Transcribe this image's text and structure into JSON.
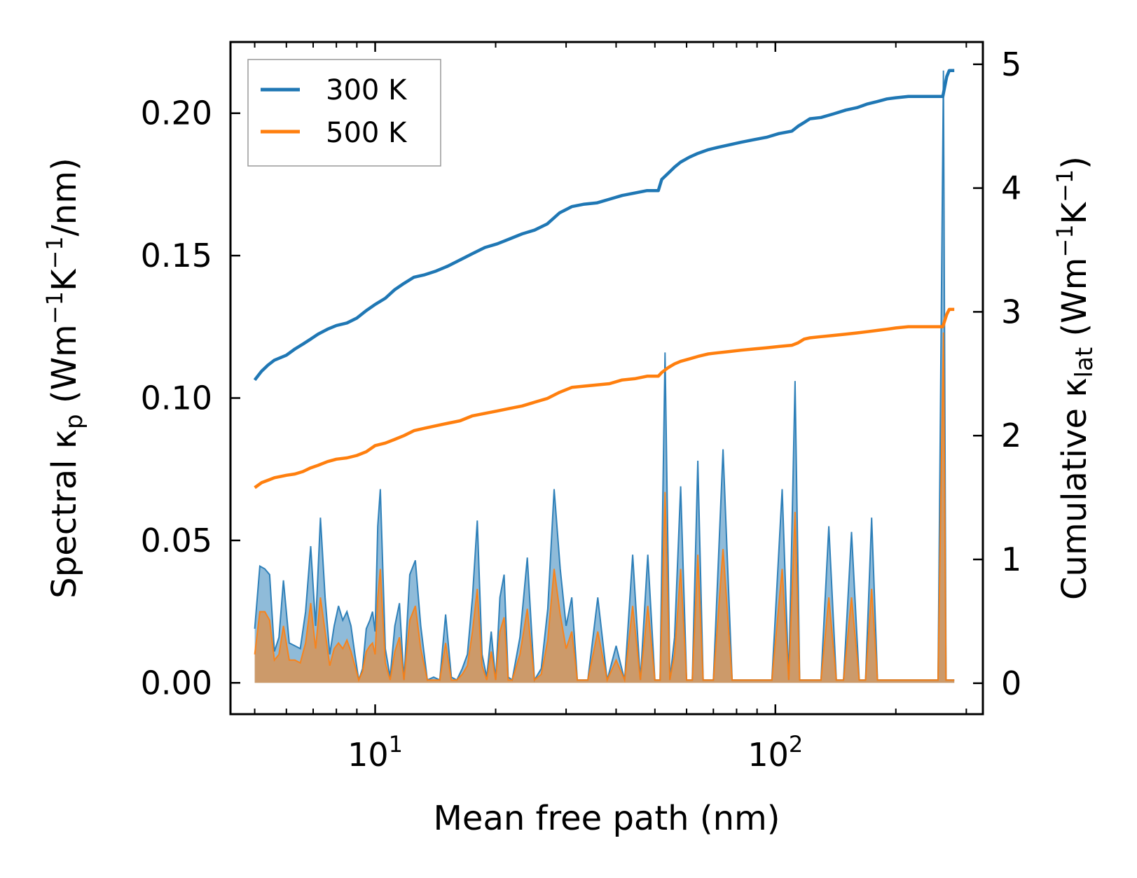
{
  "chart_data": {
    "type": "line",
    "x_scale": "log",
    "xlabel": "Mean free path (nm)",
    "ylabel_left": {
      "main": "Spectral κ",
      "sub": "p",
      "units_pre": " (Wm",
      "sup1": "−1",
      "mid": "K",
      "sup2": "−1",
      "units_post": "/nm)"
    },
    "ylabel_right": {
      "main": "Cumulative κ",
      "sub": "lat",
      "units_pre": " (Wm",
      "sup1": "−1",
      "mid": "K",
      "sup2": "−1",
      "units_post": ")"
    },
    "xlim": [
      4.35,
      330
    ],
    "ylim_left": [
      -0.011,
      0.225
    ],
    "ylim_right": [
      -0.25,
      5.18
    ],
    "x_major_ticks": [
      {
        "value": 10,
        "base": "10",
        "exp": "1"
      },
      {
        "value": 100,
        "base": "10",
        "exp": "2"
      }
    ],
    "x_minor_ticks": [
      5,
      6,
      7,
      8,
      9,
      20,
      30,
      40,
      50,
      60,
      70,
      80,
      90,
      200,
      300
    ],
    "y_left_ticks": [
      {
        "value": 0.0,
        "label": "0.00"
      },
      {
        "value": 0.05,
        "label": "0.05"
      },
      {
        "value": 0.1,
        "label": "0.10"
      },
      {
        "value": 0.15,
        "label": "0.15"
      },
      {
        "value": 0.2,
        "label": "0.20"
      }
    ],
    "y_right_ticks": [
      {
        "value": 0,
        "label": "0"
      },
      {
        "value": 1,
        "label": "1"
      },
      {
        "value": 2,
        "label": "2"
      },
      {
        "value": 3,
        "label": "3"
      },
      {
        "value": 4,
        "label": "4"
      },
      {
        "value": 5,
        "label": "5"
      }
    ],
    "legend": {
      "position": "top-left",
      "entries": [
        {
          "label": "300 K",
          "color": "#1f77b4"
        },
        {
          "label": "500 K",
          "color": "#ff7f0e"
        }
      ]
    },
    "series": [
      {
        "name": "300 K",
        "color": "#1f77b4",
        "cumulative": {
          "x": [
            5.0,
            5.2,
            5.4,
            5.6,
            5.8,
            6.0,
            6.3,
            6.6,
            6.9,
            7.2,
            7.6,
            8.0,
            8.5,
            9.0,
            9.5,
            10.0,
            10.6,
            11.2,
            11.8,
            12.5,
            13.3,
            14.2,
            15.2,
            16.3,
            17.5,
            18.8,
            20.2,
            21.7,
            23.3,
            25.0,
            26.9,
            28.9,
            31.0,
            33.3,
            35.8,
            38.5,
            41.4,
            44.5,
            47.8,
            51.0,
            52.0,
            54.0,
            56.0,
            58.0,
            61.0,
            64.0,
            68.0,
            72.0,
            77.0,
            82.0,
            88.0,
            95.0,
            102.0,
            110.0,
            114.0,
            118.0,
            122.0,
            130.0,
            140.0,
            150.0,
            160.0,
            170.0,
            180.0,
            190.0,
            200.0,
            215.0,
            230.0,
            250.0,
            262.0,
            268.0,
            272.0,
            280.0
          ],
          "y": [
            2.45,
            2.52,
            2.57,
            2.61,
            2.63,
            2.65,
            2.7,
            2.74,
            2.78,
            2.82,
            2.86,
            2.89,
            2.91,
            2.95,
            3.01,
            3.06,
            3.11,
            3.18,
            3.23,
            3.28,
            3.3,
            3.33,
            3.37,
            3.42,
            3.47,
            3.52,
            3.55,
            3.59,
            3.63,
            3.66,
            3.71,
            3.8,
            3.85,
            3.87,
            3.88,
            3.91,
            3.94,
            3.96,
            3.98,
            3.98,
            4.07,
            4.12,
            4.17,
            4.21,
            4.25,
            4.28,
            4.31,
            4.33,
            4.35,
            4.37,
            4.39,
            4.41,
            4.44,
            4.46,
            4.5,
            4.53,
            4.56,
            4.57,
            4.6,
            4.63,
            4.65,
            4.68,
            4.7,
            4.72,
            4.73,
            4.74,
            4.74,
            4.74,
            4.74,
            4.9,
            4.95,
            4.95
          ]
        },
        "spectral": {
          "x": [
            5.0,
            5.15,
            5.3,
            5.45,
            5.6,
            5.75,
            5.9,
            6.1,
            6.3,
            6.5,
            6.7,
            6.9,
            7.1,
            7.3,
            7.5,
            7.7,
            7.9,
            8.1,
            8.3,
            8.5,
            8.7,
            8.9,
            9.1,
            9.3,
            9.5,
            9.7,
            9.85,
            10.0,
            10.15,
            10.3,
            10.6,
            10.9,
            11.2,
            11.5,
            11.8,
            12.2,
            12.6,
            13.0,
            13.5,
            14.0,
            14.5,
            15.0,
            15.5,
            16.0,
            16.5,
            17.0,
            17.5,
            18.0,
            18.5,
            19.0,
            19.5,
            20.0,
            20.5,
            21.0,
            21.5,
            22.0,
            23.0,
            24.0,
            25.0,
            26.0,
            27.0,
            28.0,
            29.0,
            30.0,
            31.0,
            32.0,
            34.0,
            36.0,
            38.0,
            40.0,
            42.0,
            44.0,
            46.0,
            48.0,
            50.0,
            51.5,
            53.0,
            54.5,
            56.0,
            58.0,
            60.0,
            62.0,
            64.0,
            66.0,
            68.0,
            70.0,
            74.0,
            78.0,
            82.0,
            86.0,
            92.0,
            98.0,
            104.0,
            108.0,
            112.0,
            115.0,
            118.0,
            121.0,
            125.0,
            130.0,
            136.0,
            142.0,
            148.0,
            155.0,
            162.0,
            168.0,
            174.0,
            180.0,
            186.0,
            192.0,
            200.0,
            215.0,
            235.0,
            255.0,
            263.0,
            267.0,
            271.0,
            275.0,
            280.0
          ],
          "y": [
            0.019,
            0.041,
            0.04,
            0.038,
            0.011,
            0.016,
            0.036,
            0.014,
            0.013,
            0.012,
            0.025,
            0.048,
            0.02,
            0.058,
            0.03,
            0.01,
            0.02,
            0.027,
            0.022,
            0.025,
            0.02,
            0.01,
            0.001,
            0.005,
            0.019,
            0.022,
            0.025,
            0.018,
            0.055,
            0.068,
            0.012,
            0.002,
            0.02,
            0.028,
            0.001,
            0.038,
            0.043,
            0.02,
            0.001,
            0.002,
            0.001,
            0.024,
            0.002,
            0.001,
            0.005,
            0.01,
            0.03,
            0.057,
            0.01,
            0.002,
            0.018,
            0.001,
            0.03,
            0.038,
            0.002,
            0.001,
            0.016,
            0.044,
            0.001,
            0.005,
            0.026,
            0.068,
            0.04,
            0.02,
            0.03,
            0.001,
            0.001,
            0.03,
            0.001,
            0.013,
            0.001,
            0.045,
            0.001,
            0.045,
            0.001,
            0.001,
            0.116,
            0.001,
            0.016,
            0.069,
            0.001,
            0.001,
            0.078,
            0.001,
            0.001,
            0.001,
            0.082,
            0.001,
            0.001,
            0.001,
            0.001,
            0.001,
            0.068,
            0.001,
            0.106,
            0.001,
            0.001,
            0.001,
            0.001,
            0.001,
            0.055,
            0.001,
            0.001,
            0.053,
            0.001,
            0.001,
            0.058,
            0.001,
            0.001,
            0.001,
            0.001,
            0.001,
            0.001,
            0.001,
            0.215,
            0.001,
            0.001,
            0.001,
            0.001
          ]
        }
      },
      {
        "name": "500 K",
        "color": "#ff7f0e",
        "cumulative": {
          "x": [
            5.0,
            5.2,
            5.4,
            5.6,
            5.8,
            6.0,
            6.3,
            6.6,
            6.9,
            7.2,
            7.6,
            8.0,
            8.5,
            9.0,
            9.5,
            10.0,
            10.6,
            11.2,
            11.8,
            12.5,
            13.3,
            14.2,
            15.2,
            16.3,
            17.5,
            18.8,
            20.2,
            21.7,
            23.3,
            25.0,
            26.9,
            28.9,
            31.0,
            33.3,
            35.8,
            38.5,
            41.4,
            44.5,
            47.8,
            51.0,
            52.0,
            54.0,
            56.0,
            58.0,
            61.0,
            64.0,
            68.0,
            72.0,
            77.0,
            82.0,
            88.0,
            95.0,
            102.0,
            110.0,
            114.0,
            118.0,
            122.0,
            130.0,
            140.0,
            150.0,
            160.0,
            170.0,
            180.0,
            190.0,
            200.0,
            215.0,
            230.0,
            250.0,
            262.0,
            268.0,
            272.0,
            280.0
          ],
          "y": [
            1.58,
            1.62,
            1.64,
            1.66,
            1.67,
            1.68,
            1.69,
            1.71,
            1.74,
            1.76,
            1.79,
            1.81,
            1.82,
            1.84,
            1.87,
            1.92,
            1.94,
            1.97,
            2.0,
            2.04,
            2.06,
            2.08,
            2.1,
            2.12,
            2.16,
            2.18,
            2.2,
            2.22,
            2.24,
            2.27,
            2.3,
            2.35,
            2.39,
            2.4,
            2.41,
            2.42,
            2.45,
            2.46,
            2.48,
            2.48,
            2.51,
            2.55,
            2.58,
            2.6,
            2.62,
            2.64,
            2.66,
            2.67,
            2.68,
            2.69,
            2.7,
            2.71,
            2.72,
            2.73,
            2.75,
            2.78,
            2.79,
            2.8,
            2.81,
            2.82,
            2.83,
            2.84,
            2.85,
            2.86,
            2.87,
            2.88,
            2.88,
            2.88,
            2.88,
            2.98,
            3.02,
            3.02
          ]
        },
        "spectral": {
          "x": [
            5.0,
            5.15,
            5.3,
            5.45,
            5.6,
            5.75,
            5.9,
            6.1,
            6.3,
            6.5,
            6.7,
            6.9,
            7.1,
            7.3,
            7.5,
            7.7,
            7.9,
            8.1,
            8.3,
            8.5,
            8.7,
            8.9,
            9.1,
            9.3,
            9.5,
            9.7,
            9.85,
            10.0,
            10.15,
            10.3,
            10.6,
            10.9,
            11.2,
            11.5,
            11.8,
            12.2,
            12.6,
            13.0,
            13.5,
            14.0,
            14.5,
            15.0,
            15.5,
            16.0,
            16.5,
            17.0,
            17.5,
            18.0,
            18.5,
            19.0,
            19.5,
            20.0,
            20.5,
            21.0,
            21.5,
            22.0,
            23.0,
            24.0,
            25.0,
            26.0,
            27.0,
            28.0,
            29.0,
            30.0,
            31.0,
            32.0,
            34.0,
            36.0,
            38.0,
            40.0,
            42.0,
            44.0,
            46.0,
            48.0,
            50.0,
            51.5,
            53.0,
            54.5,
            56.0,
            58.0,
            60.0,
            62.0,
            64.0,
            66.0,
            68.0,
            70.0,
            74.0,
            78.0,
            82.0,
            86.0,
            92.0,
            98.0,
            104.0,
            108.0,
            112.0,
            115.0,
            118.0,
            121.0,
            125.0,
            130.0,
            136.0,
            142.0,
            148.0,
            155.0,
            162.0,
            168.0,
            174.0,
            180.0,
            186.0,
            192.0,
            200.0,
            215.0,
            235.0,
            255.0,
            263.0,
            267.0,
            271.0,
            275.0,
            280.0
          ],
          "y": [
            0.01,
            0.025,
            0.025,
            0.022,
            0.008,
            0.01,
            0.02,
            0.008,
            0.008,
            0.007,
            0.014,
            0.028,
            0.012,
            0.03,
            0.018,
            0.006,
            0.012,
            0.014,
            0.012,
            0.015,
            0.011,
            0.006,
            0.001,
            0.004,
            0.011,
            0.013,
            0.014,
            0.01,
            0.03,
            0.04,
            0.007,
            0.001,
            0.011,
            0.016,
            0.001,
            0.022,
            0.027,
            0.012,
            0.001,
            0.001,
            0.001,
            0.014,
            0.001,
            0.001,
            0.003,
            0.006,
            0.018,
            0.033,
            0.006,
            0.001,
            0.011,
            0.001,
            0.018,
            0.023,
            0.001,
            0.001,
            0.01,
            0.026,
            0.001,
            0.003,
            0.015,
            0.04,
            0.024,
            0.012,
            0.018,
            0.001,
            0.001,
            0.018,
            0.001,
            0.008,
            0.001,
            0.027,
            0.001,
            0.027,
            0.001,
            0.001,
            0.067,
            0.001,
            0.01,
            0.04,
            0.001,
            0.001,
            0.045,
            0.001,
            0.001,
            0.001,
            0.047,
            0.001,
            0.001,
            0.001,
            0.001,
            0.001,
            0.04,
            0.001,
            0.06,
            0.001,
            0.001,
            0.001,
            0.001,
            0.001,
            0.03,
            0.001,
            0.001,
            0.03,
            0.001,
            0.001,
            0.033,
            0.001,
            0.001,
            0.001,
            0.001,
            0.001,
            0.001,
            0.001,
            0.123,
            0.001,
            0.001,
            0.001,
            0.001
          ]
        }
      }
    ]
  }
}
